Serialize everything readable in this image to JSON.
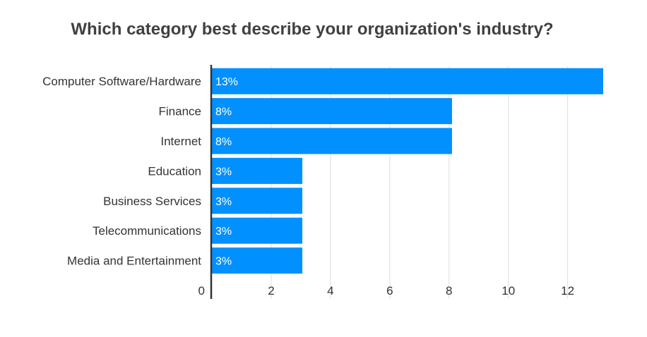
{
  "chart_data": {
    "type": "bar",
    "orientation": "horizontal",
    "title": "Which category best describe your organization's industry?",
    "categories": [
      "Computer Software/Hardware",
      "Finance",
      "Internet",
      "Education",
      "Business Services",
      "Telecommunications",
      "Media and Entertainment"
    ],
    "values": [
      13.2,
      8.1,
      8.1,
      3.05,
      3.05,
      3.05,
      3.05
    ],
    "data_labels": [
      "13%",
      "8%",
      "8%",
      "3%",
      "3%",
      "3%",
      "3%"
    ],
    "xticks": [
      0,
      2,
      4,
      6,
      8,
      10,
      12
    ],
    "xlim": [
      0,
      13.2
    ],
    "grid": "vertical",
    "legend": "none",
    "bar_color": "#0090ff",
    "axis_color": "#333333",
    "grid_color": "#dddddd"
  }
}
